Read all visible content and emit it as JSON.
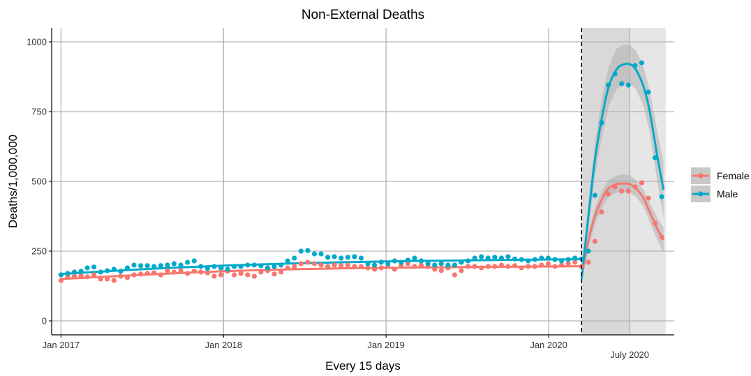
{
  "chart_data": {
    "type": "scatter",
    "title": "Non-External Deaths",
    "xlabel": "Every 15 days",
    "ylabel": "Deaths/1,000,000",
    "xlim": [
      "2016-12-11",
      "2020-10-09"
    ],
    "ylim": [
      -50,
      1050
    ],
    "yticks": [
      0,
      250,
      500,
      750,
      1000
    ],
    "xticks": [
      {
        "date": "2017-01-01",
        "label": "Jan 2017"
      },
      {
        "date": "2018-01-01",
        "label": "Jan 2018"
      },
      {
        "date": "2019-01-01",
        "label": "Jan 2019"
      },
      {
        "date": "2020-01-01",
        "label": "Jan 2020"
      }
    ],
    "xticks_shaded": [
      {
        "date": "2020-07-01",
        "label": "July 2020"
      }
    ],
    "grid": true,
    "legend_position": "right",
    "vline": {
      "date": "2020-03-15",
      "style": "dashed"
    },
    "shaded_regions": [
      {
        "from": "2020-03-15",
        "to": "2020-07-01",
        "color": "#d9d9d9"
      },
      {
        "from": "2020-07-01",
        "to": "2020-09-20",
        "color": "#e6e6e6"
      }
    ],
    "series": [
      {
        "name": "Female",
        "color": "#f8766d",
        "points": [
          [
            "2017-01-01",
            145
          ],
          [
            "2017-01-16",
            158
          ],
          [
            "2017-01-31",
            160
          ],
          [
            "2017-02-15",
            162
          ],
          [
            "2017-03-01",
            158
          ],
          [
            "2017-03-16",
            165
          ],
          [
            "2017-03-31",
            150
          ],
          [
            "2017-04-15",
            150
          ],
          [
            "2017-04-30",
            145
          ],
          [
            "2017-05-15",
            160
          ],
          [
            "2017-05-30",
            155
          ],
          [
            "2017-06-14",
            165
          ],
          [
            "2017-06-29",
            168
          ],
          [
            "2017-07-14",
            170
          ],
          [
            "2017-07-29",
            172
          ],
          [
            "2017-08-13",
            165
          ],
          [
            "2017-08-28",
            180
          ],
          [
            "2017-09-12",
            175
          ],
          [
            "2017-09-27",
            180
          ],
          [
            "2017-10-12",
            170
          ],
          [
            "2017-10-27",
            178
          ],
          [
            "2017-11-11",
            175
          ],
          [
            "2017-11-26",
            172
          ],
          [
            "2017-12-11",
            160
          ],
          [
            "2017-12-26",
            165
          ],
          [
            "2018-01-10",
            178
          ],
          [
            "2018-01-25",
            165
          ],
          [
            "2018-02-09",
            170
          ],
          [
            "2018-02-24",
            165
          ],
          [
            "2018-03-11",
            160
          ],
          [
            "2018-03-26",
            175
          ],
          [
            "2018-04-10",
            180
          ],
          [
            "2018-04-25",
            168
          ],
          [
            "2018-05-10",
            175
          ],
          [
            "2018-05-25",
            190
          ],
          [
            "2018-06-09",
            195
          ],
          [
            "2018-06-24",
            205
          ],
          [
            "2018-07-09",
            210
          ],
          [
            "2018-07-24",
            205
          ],
          [
            "2018-08-08",
            200
          ],
          [
            "2018-08-23",
            195
          ],
          [
            "2018-09-07",
            200
          ],
          [
            "2018-09-22",
            198
          ],
          [
            "2018-10-07",
            200
          ],
          [
            "2018-10-22",
            195
          ],
          [
            "2018-11-06",
            195
          ],
          [
            "2018-11-21",
            190
          ],
          [
            "2018-12-06",
            185
          ],
          [
            "2018-12-21",
            190
          ],
          [
            "2019-01-05",
            195
          ],
          [
            "2019-01-20",
            185
          ],
          [
            "2019-02-04",
            200
          ],
          [
            "2019-02-19",
            205
          ],
          [
            "2019-03-06",
            195
          ],
          [
            "2019-03-21",
            200
          ],
          [
            "2019-04-05",
            195
          ],
          [
            "2019-04-20",
            185
          ],
          [
            "2019-05-05",
            180
          ],
          [
            "2019-05-20",
            190
          ],
          [
            "2019-06-04",
            165
          ],
          [
            "2019-06-19",
            180
          ],
          [
            "2019-07-04",
            195
          ],
          [
            "2019-07-19",
            195
          ],
          [
            "2019-08-03",
            190
          ],
          [
            "2019-08-18",
            195
          ],
          [
            "2019-09-02",
            195
          ],
          [
            "2019-09-17",
            200
          ],
          [
            "2019-10-02",
            195
          ],
          [
            "2019-10-17",
            198
          ],
          [
            "2019-11-01",
            190
          ],
          [
            "2019-11-16",
            195
          ],
          [
            "2019-12-01",
            195
          ],
          [
            "2019-12-16",
            200
          ],
          [
            "2019-12-31",
            205
          ],
          [
            "2020-01-15",
            195
          ],
          [
            "2020-01-30",
            200
          ],
          [
            "2020-02-14",
            205
          ],
          [
            "2020-02-29",
            210
          ],
          [
            "2020-03-15",
            195
          ],
          [
            "2020-03-30",
            210
          ],
          [
            "2020-04-14",
            285
          ],
          [
            "2020-04-29",
            390
          ],
          [
            "2020-05-14",
            455
          ],
          [
            "2020-05-29",
            480
          ],
          [
            "2020-06-13",
            465
          ],
          [
            "2020-06-28",
            465
          ],
          [
            "2020-07-13",
            480
          ],
          [
            "2020-07-28",
            495
          ],
          [
            "2020-08-12",
            440
          ],
          [
            "2020-08-27",
            350
          ],
          [
            "2020-09-11",
            300
          ]
        ],
        "trend_pre": [
          [
            "2017-01-01",
            150
          ],
          [
            "2017-07-01",
            165
          ],
          [
            "2018-01-01",
            178
          ],
          [
            "2018-07-01",
            186
          ],
          [
            "2019-01-01",
            190
          ],
          [
            "2019-07-01",
            193
          ],
          [
            "2020-01-01",
            195
          ],
          [
            "2020-03-15",
            196
          ]
        ],
        "trend_post": [
          [
            "2020-03-15",
            160
          ],
          [
            "2020-04-01",
            300
          ],
          [
            "2020-04-15",
            380
          ],
          [
            "2020-05-01",
            440
          ],
          [
            "2020-05-15",
            475
          ],
          [
            "2020-06-01",
            490
          ],
          [
            "2020-06-15",
            492
          ],
          [
            "2020-07-01",
            490
          ],
          [
            "2020-07-15",
            475
          ],
          [
            "2020-08-01",
            440
          ],
          [
            "2020-08-15",
            390
          ],
          [
            "2020-09-01",
            330
          ],
          [
            "2020-09-15",
            290
          ]
        ],
        "band_post": [
          [
            "2020-03-15",
            140,
            180
          ],
          [
            "2020-04-01",
            270,
            330
          ],
          [
            "2020-04-15",
            350,
            410
          ],
          [
            "2020-05-01",
            410,
            470
          ],
          [
            "2020-05-15",
            445,
            505
          ],
          [
            "2020-06-01",
            460,
            520
          ],
          [
            "2020-06-15",
            462,
            525
          ],
          [
            "2020-07-01",
            460,
            522
          ],
          [
            "2020-07-15",
            445,
            505
          ],
          [
            "2020-08-01",
            410,
            470
          ],
          [
            "2020-08-15",
            355,
            425
          ],
          [
            "2020-09-01",
            290,
            370
          ],
          [
            "2020-09-15",
            245,
            335
          ]
        ]
      },
      {
        "name": "Male",
        "color": "#00a9c9",
        "points": [
          [
            "2017-01-01",
            165
          ],
          [
            "2017-01-16",
            170
          ],
          [
            "2017-01-31",
            175
          ],
          [
            "2017-02-15",
            178
          ],
          [
            "2017-03-01",
            190
          ],
          [
            "2017-03-16",
            193
          ],
          [
            "2017-03-31",
            175
          ],
          [
            "2017-04-15",
            180
          ],
          [
            "2017-04-30",
            185
          ],
          [
            "2017-05-15",
            178
          ],
          [
            "2017-05-30",
            190
          ],
          [
            "2017-06-14",
            200
          ],
          [
            "2017-06-29",
            198
          ],
          [
            "2017-07-14",
            198
          ],
          [
            "2017-07-29",
            195
          ],
          [
            "2017-08-13",
            198
          ],
          [
            "2017-08-28",
            200
          ],
          [
            "2017-09-12",
            205
          ],
          [
            "2017-09-27",
            200
          ],
          [
            "2017-10-12",
            210
          ],
          [
            "2017-10-27",
            215
          ],
          [
            "2017-11-11",
            195
          ],
          [
            "2017-11-26",
            188
          ],
          [
            "2017-12-11",
            195
          ],
          [
            "2017-12-26",
            190
          ],
          [
            "2018-01-10",
            185
          ],
          [
            "2018-01-25",
            195
          ],
          [
            "2018-02-09",
            195
          ],
          [
            "2018-02-24",
            200
          ],
          [
            "2018-03-11",
            200
          ],
          [
            "2018-03-26",
            198
          ],
          [
            "2018-04-10",
            190
          ],
          [
            "2018-04-25",
            195
          ],
          [
            "2018-05-10",
            200
          ],
          [
            "2018-05-25",
            215
          ],
          [
            "2018-06-09",
            225
          ],
          [
            "2018-06-24",
            250
          ],
          [
            "2018-07-09",
            252
          ],
          [
            "2018-07-24",
            240
          ],
          [
            "2018-08-08",
            240
          ],
          [
            "2018-08-23",
            228
          ],
          [
            "2018-09-07",
            230
          ],
          [
            "2018-09-22",
            225
          ],
          [
            "2018-10-07",
            228
          ],
          [
            "2018-10-22",
            230
          ],
          [
            "2018-11-06",
            225
          ],
          [
            "2018-11-21",
            205
          ],
          [
            "2018-12-06",
            200
          ],
          [
            "2018-12-21",
            210
          ],
          [
            "2019-01-05",
            205
          ],
          [
            "2019-01-20",
            215
          ],
          [
            "2019-02-04",
            210
          ],
          [
            "2019-02-19",
            218
          ],
          [
            "2019-03-06",
            225
          ],
          [
            "2019-03-21",
            215
          ],
          [
            "2019-04-05",
            205
          ],
          [
            "2019-04-20",
            200
          ],
          [
            "2019-05-05",
            205
          ],
          [
            "2019-05-20",
            200
          ],
          [
            "2019-06-04",
            200
          ],
          [
            "2019-06-19",
            210
          ],
          [
            "2019-07-04",
            215
          ],
          [
            "2019-07-19",
            225
          ],
          [
            "2019-08-03",
            230
          ],
          [
            "2019-08-18",
            225
          ],
          [
            "2019-09-02",
            228
          ],
          [
            "2019-09-17",
            225
          ],
          [
            "2019-10-02",
            230
          ],
          [
            "2019-10-17",
            222
          ],
          [
            "2019-11-01",
            220
          ],
          [
            "2019-11-16",
            215
          ],
          [
            "2019-12-01",
            220
          ],
          [
            "2019-12-16",
            225
          ],
          [
            "2019-12-31",
            225
          ],
          [
            "2020-01-15",
            220
          ],
          [
            "2020-01-30",
            215
          ],
          [
            "2020-02-14",
            220
          ],
          [
            "2020-02-29",
            225
          ],
          [
            "2020-03-15",
            222
          ],
          [
            "2020-03-30",
            250
          ],
          [
            "2020-04-14",
            450
          ],
          [
            "2020-04-29",
            710
          ],
          [
            "2020-05-14",
            845
          ],
          [
            "2020-05-29",
            885
          ],
          [
            "2020-06-13",
            850
          ],
          [
            "2020-06-28",
            845
          ],
          [
            "2020-07-13",
            915
          ],
          [
            "2020-07-28",
            925
          ],
          [
            "2020-08-12",
            820
          ],
          [
            "2020-08-27",
            585
          ],
          [
            "2020-09-11",
            445
          ]
        ],
        "trend_pre": [
          [
            "2017-01-01",
            168
          ],
          [
            "2017-07-01",
            185
          ],
          [
            "2018-01-01",
            198
          ],
          [
            "2018-07-01",
            207
          ],
          [
            "2019-01-01",
            213
          ],
          [
            "2019-07-01",
            217
          ],
          [
            "2020-01-01",
            220
          ],
          [
            "2020-03-15",
            221
          ]
        ],
        "trend_post": [
          [
            "2020-03-15",
            150
          ],
          [
            "2020-04-01",
            400
          ],
          [
            "2020-04-15",
            590
          ],
          [
            "2020-05-01",
            740
          ],
          [
            "2020-05-15",
            840
          ],
          [
            "2020-06-01",
            900
          ],
          [
            "2020-06-15",
            918
          ],
          [
            "2020-07-01",
            920
          ],
          [
            "2020-07-15",
            900
          ],
          [
            "2020-08-01",
            840
          ],
          [
            "2020-08-15",
            750
          ],
          [
            "2020-09-01",
            590
          ],
          [
            "2020-09-15",
            470
          ]
        ],
        "band_post": [
          [
            "2020-03-15",
            120,
            185
          ],
          [
            "2020-04-01",
            350,
            450
          ],
          [
            "2020-04-15",
            530,
            650
          ],
          [
            "2020-05-01",
            670,
            810
          ],
          [
            "2020-05-15",
            770,
            910
          ],
          [
            "2020-06-01",
            830,
            975
          ],
          [
            "2020-06-15",
            845,
            990
          ],
          [
            "2020-07-01",
            850,
            990
          ],
          [
            "2020-07-15",
            830,
            970
          ],
          [
            "2020-08-01",
            770,
            910
          ],
          [
            "2020-08-15",
            675,
            825
          ],
          [
            "2020-09-01",
            500,
            680
          ],
          [
            "2020-09-15",
            370,
            570
          ]
        ]
      }
    ]
  }
}
